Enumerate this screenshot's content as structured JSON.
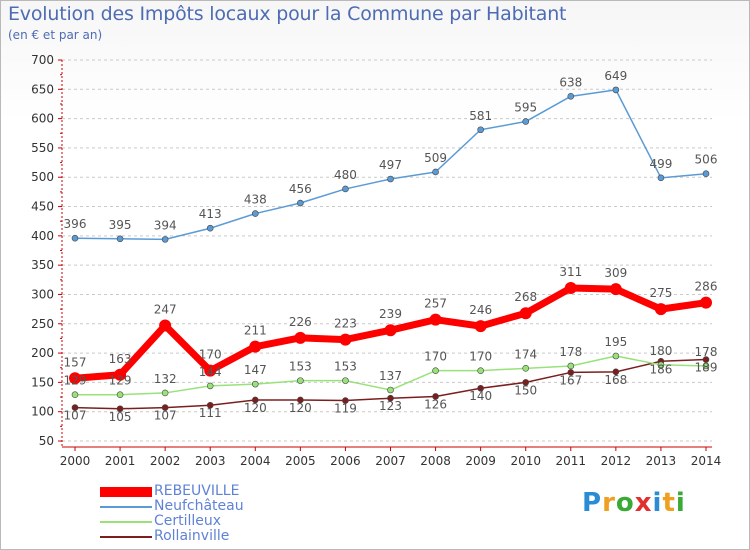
{
  "chart_data": {
    "type": "line",
    "title": "Evolution des Impôts locaux pour la Commune par Habitant",
    "subtitle": "(en € et par an)",
    "categories": [
      "2000",
      "2001",
      "2002",
      "2003",
      "2004",
      "2005",
      "2006",
      "2007",
      "2008",
      "2009",
      "2010",
      "2011",
      "2012",
      "2013",
      "2014"
    ],
    "ylim": [
      50,
      700
    ],
    "yticks": [
      50,
      100,
      150,
      200,
      250,
      300,
      350,
      400,
      450,
      500,
      550,
      600,
      650,
      700
    ],
    "grid": "horizontal dashed",
    "legend_position": "bottom-left",
    "series": [
      {
        "name": "REBEUVILLE",
        "color": "#ff0000",
        "values": [
          157,
          163,
          247,
          170,
          211,
          226,
          223,
          239,
          257,
          246,
          268,
          311,
          309,
          275,
          286
        ]
      },
      {
        "name": "Neufchâteau",
        "color": "#5b9bd5",
        "values": [
          396,
          395,
          394,
          413,
          438,
          456,
          480,
          497,
          509,
          581,
          595,
          638,
          649,
          499,
          506
        ]
      },
      {
        "name": "Certilleux",
        "color": "#99e27a",
        "values": [
          129,
          129,
          132,
          144,
          147,
          153,
          153,
          137,
          170,
          170,
          174,
          178,
          195,
          180,
          178
        ]
      },
      {
        "name": "Rollainville",
        "color": "#7a1e1e",
        "values": [
          107,
          105,
          107,
          111,
          120,
          120,
          119,
          123,
          126,
          140,
          150,
          167,
          168,
          186,
          189
        ]
      }
    ]
  },
  "brand": {
    "letters": [
      "P",
      "r",
      "o",
      "x",
      "i",
      "t",
      "i"
    ],
    "colors": [
      "#2b8cd6",
      "#f0a020",
      "#3aa935",
      "#e03030",
      "#2b8cd6",
      "#f0a020",
      "#3aa935"
    ]
  }
}
